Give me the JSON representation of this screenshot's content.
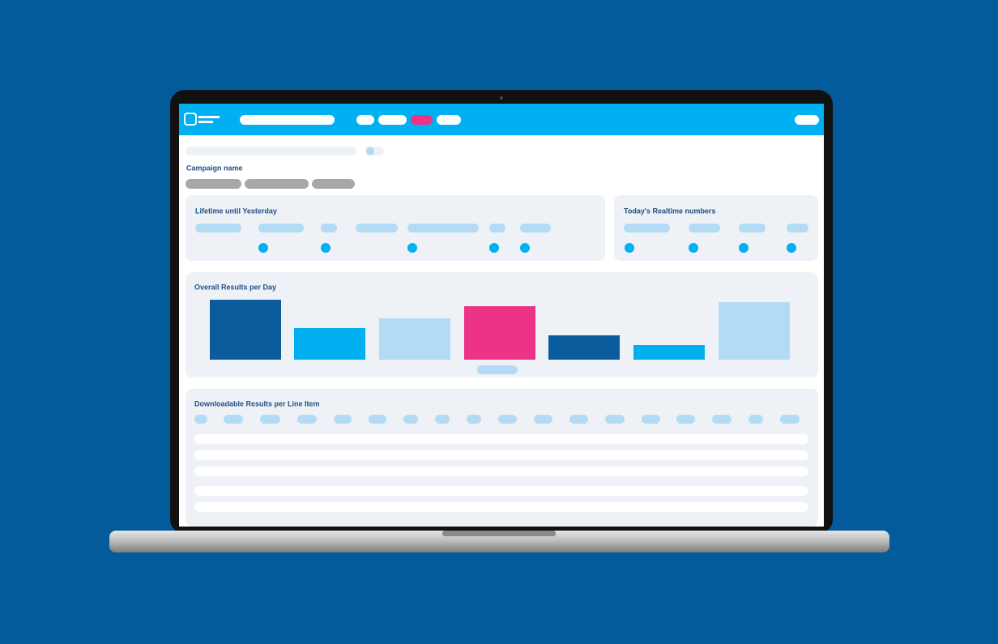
{
  "screen": {
    "campaign_label": "Campaign name",
    "sections": [
      "Lifetime until Yesterday",
      "Today's Realtime numbers",
      "Overall Results per Day",
      "Downloadable Results per Line Item"
    ]
  }
}
